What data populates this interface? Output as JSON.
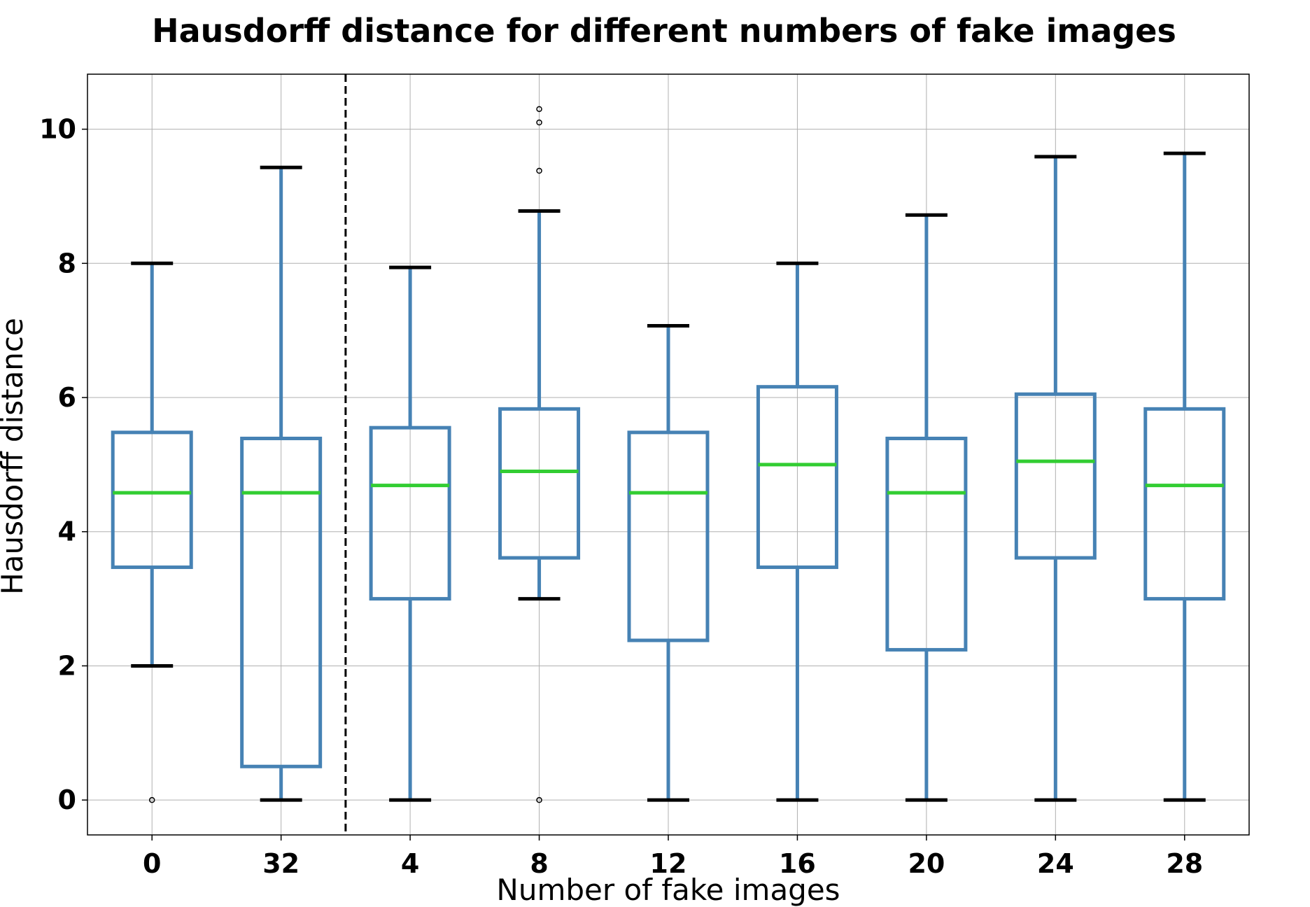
{
  "chart_data": {
    "type": "box",
    "title": "Hausdorff distance for different numbers of fake images",
    "xlabel": "Number of fake images",
    "ylabel": "Hausdorff distance",
    "categories": [
      "0",
      "32",
      "4",
      "8",
      "12",
      "16",
      "20",
      "24",
      "28"
    ],
    "ylim": [
      -0.52,
      10.82
    ],
    "yticks": [
      0,
      2,
      4,
      6,
      8,
      10
    ],
    "grid": true,
    "separator_after_index": 1,
    "boxes": [
      {
        "label": "0",
        "whisker_low": 2.0,
        "q1": 3.47,
        "median": 4.58,
        "q3": 5.48,
        "whisker_high": 8.0,
        "outliers": [
          0.0
        ]
      },
      {
        "label": "32",
        "whisker_low": 0.0,
        "q1": 0.5,
        "median": 4.58,
        "q3": 5.39,
        "whisker_high": 9.43,
        "outliers": []
      },
      {
        "label": "4",
        "whisker_low": 0.0,
        "q1": 3.0,
        "median": 4.69,
        "q3": 5.55,
        "whisker_high": 7.94,
        "outliers": []
      },
      {
        "label": "8",
        "whisker_low": 3.0,
        "q1": 3.61,
        "median": 4.9,
        "q3": 5.83,
        "whisker_high": 8.78,
        "outliers": [
          0.0,
          9.38,
          10.1,
          10.3
        ]
      },
      {
        "label": "12",
        "whisker_low": 0.0,
        "q1": 2.38,
        "median": 4.58,
        "q3": 5.48,
        "whisker_high": 7.07,
        "outliers": []
      },
      {
        "label": "16",
        "whisker_low": 0.0,
        "q1": 3.47,
        "median": 5.0,
        "q3": 6.16,
        "whisker_high": 8.0,
        "outliers": []
      },
      {
        "label": "20",
        "whisker_low": 0.0,
        "q1": 2.24,
        "median": 4.58,
        "q3": 5.39,
        "whisker_high": 8.72,
        "outliers": []
      },
      {
        "label": "24",
        "whisker_low": 0.0,
        "q1": 3.61,
        "median": 5.05,
        "q3": 6.05,
        "whisker_high": 9.59,
        "outliers": []
      },
      {
        "label": "28",
        "whisker_low": 0.0,
        "q1": 3.0,
        "median": 4.69,
        "q3": 5.83,
        "whisker_high": 9.64,
        "outliers": []
      }
    ],
    "colors": {
      "box": "#4682b4",
      "median": "#32cd32",
      "caps": "#000000",
      "grid": "#b0b0b0",
      "separator": "#000000"
    }
  }
}
